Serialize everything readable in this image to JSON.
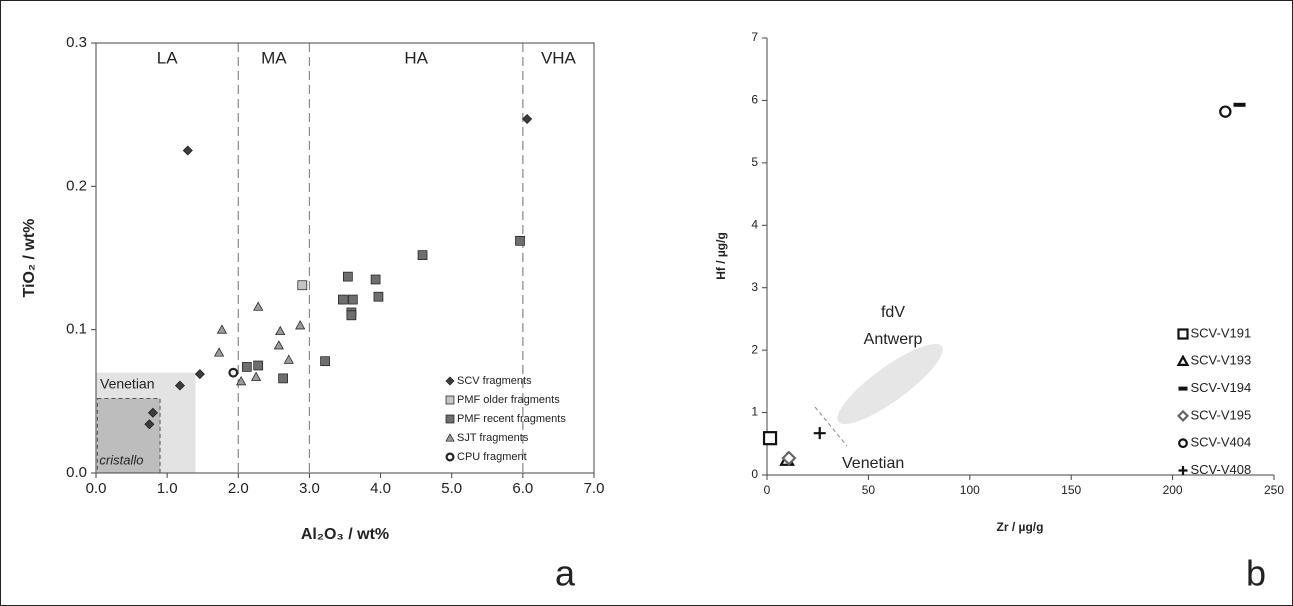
{
  "chart_data": [
    {
      "type": "scatter",
      "panel": "a",
      "xlabel": "Al₂O₃ / wt%",
      "ylabel": "TiO₂ / wt%",
      "xlim": [
        0,
        7
      ],
      "ylim": [
        0,
        0.3
      ],
      "xticks": [
        {
          "value": 0,
          "label": "0.0"
        },
        {
          "value": 1,
          "label": "1.0"
        },
        {
          "value": 2,
          "label": "2.0"
        },
        {
          "value": 3,
          "label": "3.0"
        },
        {
          "value": 4,
          "label": "4.0"
        },
        {
          "value": 5,
          "label": "5.0"
        },
        {
          "value": 6,
          "label": "6.0"
        },
        {
          "value": 7,
          "label": "7.0"
        }
      ],
      "yticks": [
        {
          "value": 0,
          "label": "0.0"
        },
        0.1,
        0.2,
        0.3
      ],
      "vlines": [
        2,
        3,
        6
      ],
      "zone_labels": [
        "LA",
        "MA",
        "HA",
        "VHA"
      ],
      "regions": [
        {
          "label": "Venetian",
          "x": [
            0,
            1.4
          ],
          "y": [
            0,
            0.07
          ],
          "color": "#e3e3e3"
        },
        {
          "label": "cristallo",
          "x": [
            0.02,
            0.9
          ],
          "y": [
            0,
            0.052
          ],
          "color": "#bdbdbd"
        }
      ],
      "markers": "filled",
      "series": [
        {
          "name": "SCV fragments",
          "marker": "diamond",
          "color": "#3c3c3c",
          "x": [
            1.29,
            6.06,
            1.46,
            1.18,
            0.8,
            0.75
          ],
          "values": [
            0.225,
            0.247,
            0.069,
            0.061,
            0.042,
            0.034
          ]
        },
        {
          "name": "PMF older fragments",
          "marker": "square",
          "color": "#c4c4c4",
          "x": [
            2.9
          ],
          "values": [
            0.131
          ]
        },
        {
          "name": "PMF recent fragments",
          "marker": "square",
          "color": "#6e6e6e",
          "x": [
            5.96,
            4.59,
            3.54,
            3.93,
            3.47,
            3.61,
            3.97,
            3.59,
            3.59,
            3.22,
            2.12,
            2.28,
            2.63
          ],
          "values": [
            0.162,
            0.152,
            0.137,
            0.135,
            0.121,
            0.121,
            0.123,
            0.112,
            0.11,
            0.078,
            0.074,
            0.075,
            0.066
          ]
        },
        {
          "name": "SJT fragments",
          "marker": "triangle",
          "color": "#9a9a9a",
          "x": [
            1.77,
            1.73,
            2.28,
            2.59,
            2.87,
            2.57,
            2.71,
            2.04,
            2.25
          ],
          "values": [
            0.1,
            0.084,
            0.116,
            0.099,
            0.103,
            0.089,
            0.079,
            0.064,
            0.067
          ]
        },
        {
          "name": "CPU fragment",
          "marker": "circle",
          "color": "#222222",
          "x": [
            1.93
          ],
          "values": [
            0.07
          ]
        }
      ]
    },
    {
      "type": "scatter",
      "panel": "b",
      "xlabel": "Zr / µg/g",
      "ylabel": "Hf / µg/g",
      "xlim": [
        0,
        250
      ],
      "ylim": [
        0,
        7
      ],
      "xticks": [
        0,
        50,
        100,
        150,
        200,
        250
      ],
      "yticks": [
        0,
        1,
        2,
        3,
        4,
        5,
        6,
        7
      ],
      "annotations": [
        "fdV",
        "Antwerp",
        "Venetian"
      ],
      "markers": "open",
      "series": [
        {
          "name": "SCV-V191",
          "marker": "square",
          "color": "#111111",
          "x": [
            1.5
          ],
          "values": [
            0.59
          ]
        },
        {
          "name": "SCV-V193",
          "marker": "triangle",
          "color": "#111111",
          "x": [
            9.9
          ],
          "values": [
            0.24
          ]
        },
        {
          "name": "SCV-V194",
          "marker": "dash",
          "color": "#111111",
          "x": [
            233
          ],
          "values": [
            5.93
          ]
        },
        {
          "name": "SCV-V195",
          "marker": "diamond",
          "color": "#666666",
          "x": [
            10.8
          ],
          "values": [
            0.27
          ]
        },
        {
          "name": "SCV-V404",
          "marker": "circle",
          "color": "#111111",
          "x": [
            226
          ],
          "values": [
            5.82
          ]
        },
        {
          "name": "SCV-V408",
          "marker": "plus",
          "color": "#111111",
          "x": [
            26
          ],
          "values": [
            0.67
          ]
        }
      ]
    }
  ]
}
